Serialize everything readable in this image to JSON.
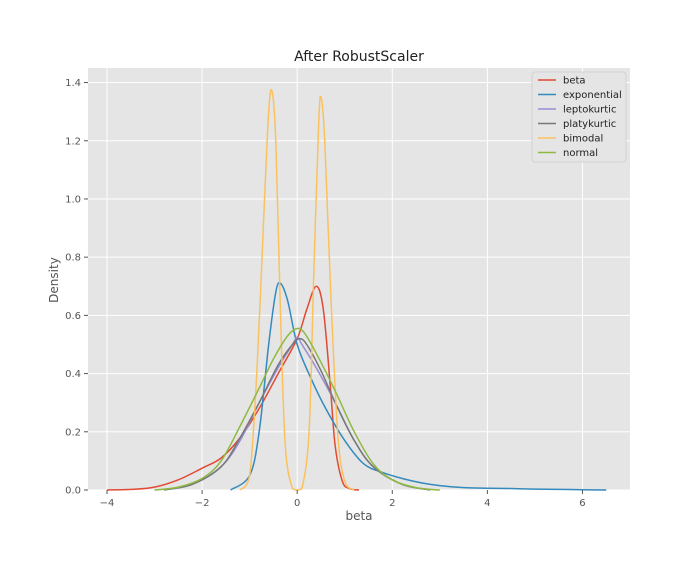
{
  "chart_data": {
    "type": "line",
    "title": "After RobustScaler",
    "xlabel": "beta",
    "ylabel": "Density",
    "xlim": [
      -4.4,
      7.0
    ],
    "ylim": [
      0,
      1.45
    ],
    "xticks": [
      -4,
      -2,
      0,
      2,
      4,
      6
    ],
    "xtick_labels": [
      "−4",
      "−2",
      "0",
      "2",
      "4",
      "6"
    ],
    "yticks": [
      0.0,
      0.2,
      0.4,
      0.6,
      0.8,
      1.0,
      1.2,
      1.4
    ],
    "ytick_labels": [
      "0.0",
      "0.2",
      "0.4",
      "0.6",
      "0.8",
      "1.0",
      "1.2",
      "1.4"
    ],
    "grid": true,
    "legend_position": "top-right",
    "series": [
      {
        "name": "beta",
        "color": "#E24A33",
        "points": [
          [
            -4.0,
            0.0
          ],
          [
            -3.5,
            0.002
          ],
          [
            -3.0,
            0.01
          ],
          [
            -2.5,
            0.035
          ],
          [
            -2.0,
            0.075
          ],
          [
            -1.6,
            0.11
          ],
          [
            -1.2,
            0.18
          ],
          [
            -0.8,
            0.28
          ],
          [
            -0.4,
            0.4
          ],
          [
            0.0,
            0.52
          ],
          [
            0.2,
            0.62
          ],
          [
            0.4,
            0.7
          ],
          [
            0.55,
            0.62
          ],
          [
            0.7,
            0.35
          ],
          [
            0.8,
            0.15
          ],
          [
            0.95,
            0.03
          ],
          [
            1.1,
            0.005
          ],
          [
            1.3,
            0.0
          ]
        ]
      },
      {
        "name": "exponential",
        "color": "#348ABD",
        "points": [
          [
            -1.4,
            0.0
          ],
          [
            -1.0,
            0.05
          ],
          [
            -0.8,
            0.2
          ],
          [
            -0.6,
            0.5
          ],
          [
            -0.45,
            0.68
          ],
          [
            -0.35,
            0.71
          ],
          [
            -0.2,
            0.65
          ],
          [
            0.0,
            0.5
          ],
          [
            0.3,
            0.38
          ],
          [
            0.6,
            0.28
          ],
          [
            1.0,
            0.17
          ],
          [
            1.4,
            0.09
          ],
          [
            1.8,
            0.06
          ],
          [
            2.2,
            0.04
          ],
          [
            2.6,
            0.025
          ],
          [
            3.0,
            0.015
          ],
          [
            3.5,
            0.008
          ],
          [
            4.0,
            0.006
          ],
          [
            4.5,
            0.005
          ],
          [
            5.0,
            0.003
          ],
          [
            5.5,
            0.002
          ],
          [
            6.0,
            0.001
          ],
          [
            6.5,
            0.0
          ]
        ]
      },
      {
        "name": "leptokurtic",
        "color": "#988ED5",
        "points": [
          [
            -2.8,
            0.0
          ],
          [
            -2.2,
            0.02
          ],
          [
            -1.6,
            0.08
          ],
          [
            -1.2,
            0.17
          ],
          [
            -0.8,
            0.3
          ],
          [
            -0.4,
            0.42
          ],
          [
            -0.1,
            0.5
          ],
          [
            0.0,
            0.525
          ],
          [
            0.1,
            0.5
          ],
          [
            0.4,
            0.42
          ],
          [
            0.8,
            0.3
          ],
          [
            1.2,
            0.17
          ],
          [
            1.6,
            0.08
          ],
          [
            2.2,
            0.02
          ],
          [
            2.8,
            0.0
          ]
        ]
      },
      {
        "name": "platykurtic",
        "color": "#777777",
        "points": [
          [
            -2.8,
            0.0
          ],
          [
            -2.2,
            0.02
          ],
          [
            -1.6,
            0.08
          ],
          [
            -1.2,
            0.18
          ],
          [
            -0.8,
            0.3
          ],
          [
            -0.4,
            0.43
          ],
          [
            -0.1,
            0.5
          ],
          [
            0.05,
            0.52
          ],
          [
            0.2,
            0.5
          ],
          [
            0.5,
            0.41
          ],
          [
            0.8,
            0.3
          ],
          [
            1.2,
            0.17
          ],
          [
            1.6,
            0.08
          ],
          [
            2.2,
            0.02
          ],
          [
            2.8,
            0.0
          ]
        ]
      },
      {
        "name": "bimodal",
        "color": "#FBC15E",
        "points": [
          [
            -1.2,
            0.0
          ],
          [
            -1.0,
            0.05
          ],
          [
            -0.85,
            0.4
          ],
          [
            -0.7,
            0.95
          ],
          [
            -0.6,
            1.3
          ],
          [
            -0.53,
            1.37
          ],
          [
            -0.45,
            1.2
          ],
          [
            -0.35,
            0.6
          ],
          [
            -0.25,
            0.15
          ],
          [
            -0.1,
            0.005
          ],
          [
            0.0,
            0.0
          ],
          [
            0.1,
            0.005
          ],
          [
            0.25,
            0.2
          ],
          [
            0.35,
            0.75
          ],
          [
            0.45,
            1.25
          ],
          [
            0.5,
            1.35
          ],
          [
            0.58,
            1.2
          ],
          [
            0.7,
            0.7
          ],
          [
            0.85,
            0.2
          ],
          [
            1.0,
            0.03
          ],
          [
            1.2,
            0.0
          ]
        ]
      },
      {
        "name": "normal",
        "color": "#8EBA42",
        "points": [
          [
            -3.0,
            0.0
          ],
          [
            -2.5,
            0.01
          ],
          [
            -2.0,
            0.04
          ],
          [
            -1.6,
            0.1
          ],
          [
            -1.2,
            0.22
          ],
          [
            -0.8,
            0.35
          ],
          [
            -0.5,
            0.45
          ],
          [
            -0.2,
            0.53
          ],
          [
            0.0,
            0.555
          ],
          [
            0.15,
            0.54
          ],
          [
            0.4,
            0.47
          ],
          [
            0.8,
            0.34
          ],
          [
            1.2,
            0.2
          ],
          [
            1.6,
            0.09
          ],
          [
            2.0,
            0.035
          ],
          [
            2.5,
            0.008
          ],
          [
            3.0,
            0.0
          ]
        ]
      }
    ]
  }
}
